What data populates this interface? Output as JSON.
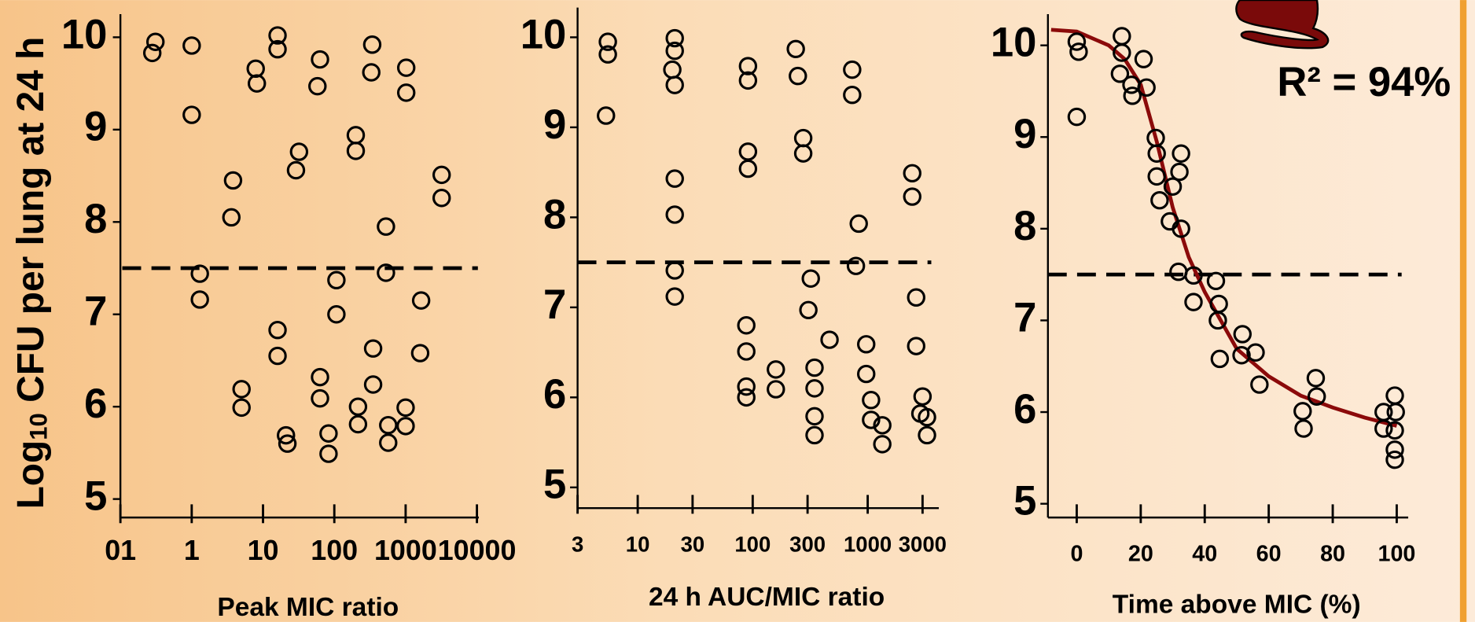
{
  "chart_data": [
    {
      "type": "scatter",
      "xscale": "log",
      "marker_color": "#000000",
      "ylabel_parts": [
        "Log",
        "10",
        " CFU per lung at 24 h"
      ],
      "xlabel": "Peak MIC ratio",
      "xlim": [
        0.1,
        10000
      ],
      "xticks": [
        {
          "value": 0.1,
          "label": "01"
        },
        1,
        10,
        100,
        1000,
        10000
      ],
      "ylim": [
        4.8,
        10.25
      ],
      "yticks": [
        5,
        6,
        7,
        8,
        9,
        10
      ],
      "threshold": 7.5,
      "x": [
        0.28,
        0.31,
        1.0,
        1.0,
        1.3,
        1.3,
        3.8,
        3.6,
        5.0,
        5.0,
        7.9,
        8.2,
        16,
        16,
        16,
        16,
        21,
        22,
        32,
        29,
        63,
        58,
        63,
        63,
        83,
        83,
        107,
        107,
        200,
        200,
        215,
        215,
        340,
        330,
        350,
        350,
        530,
        530,
        570,
        570,
        1020,
        1020,
        1000,
        1000,
        1650,
        1600,
        3200,
        3200
      ],
      "values": [
        9.83,
        9.95,
        9.91,
        9.16,
        7.44,
        7.16,
        8.45,
        8.05,
        6.19,
        5.99,
        9.66,
        9.5,
        10.02,
        9.87,
        6.83,
        6.55,
        5.69,
        5.6,
        8.76,
        8.56,
        9.76,
        9.47,
        6.32,
        6.09,
        5.71,
        5.49,
        7.37,
        7.0,
        8.94,
        8.77,
        6.0,
        5.81,
        9.92,
        9.62,
        6.63,
        6.24,
        7.95,
        7.45,
        5.8,
        5.61,
        9.67,
        9.4,
        5.99,
        5.79,
        7.15,
        6.58,
        8.51,
        8.26
      ]
    },
    {
      "type": "scatter",
      "xscale": "log",
      "marker_color": "#000000",
      "xlabel": "24 h AUC/MIC ratio",
      "xlim": [
        3,
        4000
      ],
      "xticks": [
        3,
        10,
        30,
        100,
        300,
        1000,
        3000
      ],
      "ylim": [
        4.77,
        10.33
      ],
      "yticks": [
        5,
        6,
        7,
        8,
        9,
        10
      ],
      "threshold": 7.5,
      "x": [
        5.5,
        5.5,
        5.3,
        21,
        21,
        20,
        21,
        21,
        21,
        21,
        21,
        91,
        91,
        91,
        91,
        88,
        88,
        88,
        88,
        159,
        159,
        237,
        247,
        275,
        275,
        320,
        305,
        345,
        345,
        345,
        345,
        466,
        733,
        733,
        836,
        790,
        971,
        971,
        1070,
        1070,
        1340,
        1340,
        2440,
        2440,
        2640,
        2640,
        3000,
        2870,
        3280,
        3280
      ],
      "values": [
        9.95,
        9.81,
        9.13,
        9.99,
        9.85,
        9.64,
        9.47,
        8.43,
        8.03,
        7.41,
        7.12,
        9.68,
        9.52,
        8.73,
        8.54,
        6.8,
        6.51,
        6.12,
        6.0,
        6.31,
        6.09,
        9.87,
        9.57,
        8.88,
        8.71,
        7.32,
        6.97,
        6.33,
        6.1,
        5.79,
        5.58,
        6.64,
        9.64,
        9.36,
        7.93,
        7.46,
        6.59,
        6.26,
        5.97,
        5.75,
        5.69,
        5.48,
        8.49,
        8.23,
        7.11,
        6.57,
        6.01,
        5.82,
        5.78,
        5.58
      ]
    },
    {
      "type": "scatter",
      "xscale": "linear",
      "marker_color": "#000000",
      "xlabel": "Time above MIC (%)",
      "annotation": "R² = 94%",
      "xlim": [
        -9,
        103
      ],
      "xticks": [
        0,
        20,
        40,
        60,
        80,
        100
      ],
      "ylim": [
        4.85,
        10.34
      ],
      "yticks": [
        5,
        6,
        7,
        8,
        9,
        10
      ],
      "threshold": 7.5,
      "x": [
        0,
        0.6,
        0,
        14.1,
        14.1,
        13.5,
        17.1,
        17.4,
        20.9,
        21.8,
        24.7,
        25,
        25,
        25.9,
        29.1,
        30,
        32.1,
        32.6,
        32.6,
        31.8,
        36.5,
        36.5,
        43.5,
        44.4,
        44.1,
        44.7,
        51.8,
        51.5,
        55.9,
        57.1,
        70.6,
        70.9,
        74.7,
        75,
        95.9,
        95.9,
        99.4,
        99.7,
        99.4,
        99.4,
        99.4
      ],
      "values": [
        10.04,
        9.93,
        9.22,
        10.1,
        9.92,
        9.69,
        9.57,
        9.45,
        9.85,
        9.54,
        8.99,
        8.82,
        8.57,
        8.31,
        8.08,
        8.46,
        8.62,
        8.82,
        8.0,
        7.53,
        7.49,
        7.2,
        7.43,
        7.18,
        7.0,
        6.58,
        6.85,
        6.62,
        6.65,
        6.3,
        6.01,
        5.82,
        6.37,
        6.17,
        6.0,
        5.82,
        6.18,
        6.0,
        5.8,
        5.59,
        5.48
      ],
      "fit": {
        "color": "#8b0a0a",
        "x": [
          -8,
          0,
          10,
          15,
          20,
          25,
          30,
          35,
          40,
          45,
          50,
          60,
          70,
          80,
          90,
          100
        ],
        "values": [
          10.17,
          10.15,
          10.0,
          9.85,
          9.57,
          8.95,
          8.23,
          7.69,
          7.31,
          7.0,
          6.69,
          6.39,
          6.18,
          6.05,
          5.94,
          5.85
        ]
      }
    }
  ]
}
